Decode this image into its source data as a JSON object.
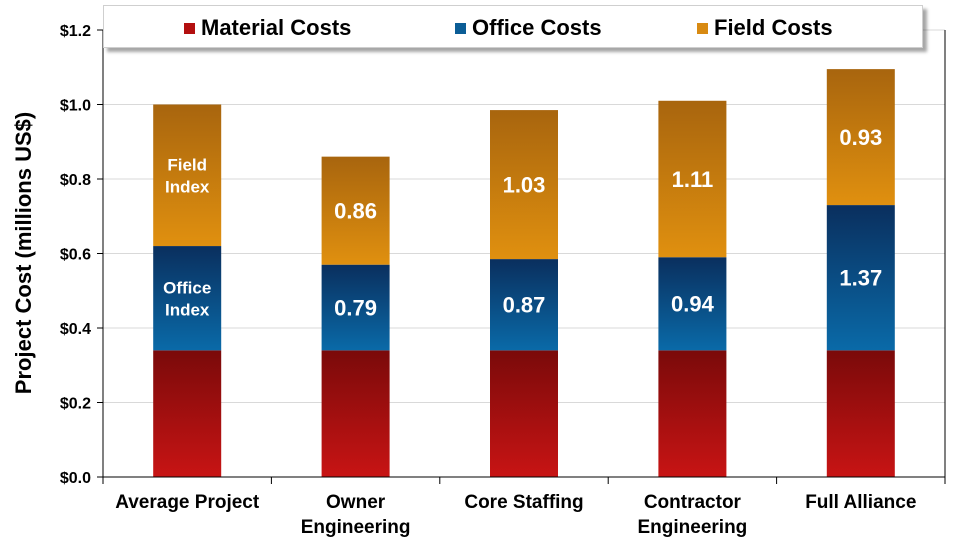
{
  "chart_data": {
    "type": "bar",
    "stacked": true,
    "categories": [
      [
        "Average Project"
      ],
      [
        "Owner",
        "Engineering"
      ],
      [
        "Core Staffing"
      ],
      [
        "Contractor",
        "Engineering"
      ],
      [
        "Full Alliance"
      ]
    ],
    "series": [
      {
        "name": "Material Costs",
        "color": "#b30f0f",
        "values": [
          0.34,
          0.34,
          0.34,
          0.34,
          0.34
        ]
      },
      {
        "name": "Office Costs",
        "color": "#0b5d96",
        "values": [
          0.28,
          0.23,
          0.245,
          0.25,
          0.39
        ]
      },
      {
        "name": "Field Costs",
        "color": "#d88a12",
        "values": [
          0.38,
          0.29,
          0.4,
          0.42,
          0.365
        ]
      }
    ],
    "bar_labels": {
      "office": [
        [
          "Office",
          "Index"
        ],
        [
          "0.79"
        ],
        [
          "0.87"
        ],
        [
          "0.94"
        ],
        [
          "1.37"
        ]
      ],
      "field": [
        [
          "Field",
          "Index"
        ],
        [
          "0.86"
        ],
        [
          "1.03"
        ],
        [
          "1.11"
        ],
        [
          "0.93"
        ]
      ]
    },
    "ylabel": "Project Cost (millions US$)",
    "ylim": [
      0,
      1.2
    ],
    "yticks": [
      "$0.0",
      "$0.2",
      "$0.4",
      "$0.6",
      "$0.8",
      "$1.0",
      "$1.2"
    ],
    "grid": true,
    "legend_position": "top"
  }
}
